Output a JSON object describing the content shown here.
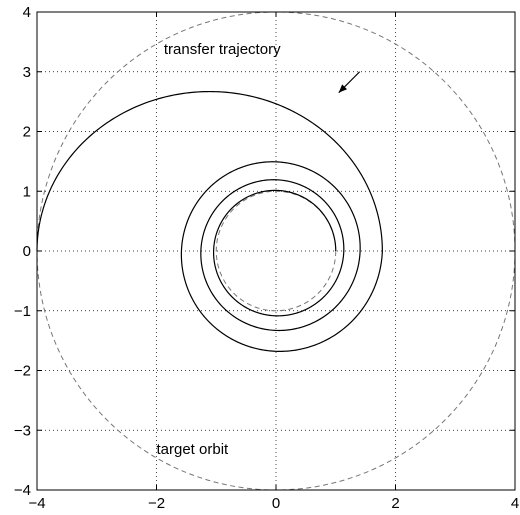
{
  "chart_data": {
    "type": "line",
    "title": "",
    "xlabel": "",
    "ylabel": "",
    "xlim": [
      -4,
      4
    ],
    "ylim": [
      -4,
      4
    ],
    "grid": true,
    "xticks": [
      -4,
      -2,
      0,
      2,
      4
    ],
    "yticks": [
      -4,
      -3,
      -2,
      -1,
      0,
      1,
      2,
      3,
      4
    ],
    "x_tick_labels": [
      "−4",
      "−2",
      "0",
      "2",
      "4"
    ],
    "y_tick_labels": [
      "−4",
      "−3",
      "−2",
      "−1",
      "0",
      "1",
      "2",
      "3",
      "4"
    ],
    "series": [
      {
        "style": "dashed",
        "color": "#777777",
        "shape": "circle",
        "center": [
          0,
          0
        ],
        "radius": 1
      },
      {
        "style": "dashed",
        "color": "#777777",
        "shape": "circle",
        "center": [
          0,
          0
        ],
        "radius": 4
      },
      {
        "style": "solid",
        "color": "#000000",
        "shape": "spiral",
        "start": [
          1,
          0
        ],
        "end": [
          -4,
          0
        ],
        "turns": 3.5,
        "sample_points": [
          [
            1,
            0
          ],
          [
            0,
            1.02
          ],
          [
            -1.1,
            0
          ],
          [
            0,
            -1.2
          ],
          [
            1.3,
            0
          ],
          [
            0,
            1.45
          ],
          [
            -1.55,
            0
          ],
          [
            0,
            -1.65
          ],
          [
            1.78,
            0
          ],
          [
            0,
            2.45
          ],
          [
            -0.9,
            2.8
          ],
          [
            -4,
            0
          ]
        ]
      }
    ],
    "annotations": [
      {
        "text": "transfer trajectory",
        "x": -0.9,
        "y": 3.3
      },
      {
        "text": "target orbit",
        "x": -1.4,
        "y": -3.4
      },
      {
        "type": "arrow",
        "from": [
          1.4,
          3.0
        ],
        "to": [
          1.05,
          2.65
        ]
      }
    ]
  }
}
